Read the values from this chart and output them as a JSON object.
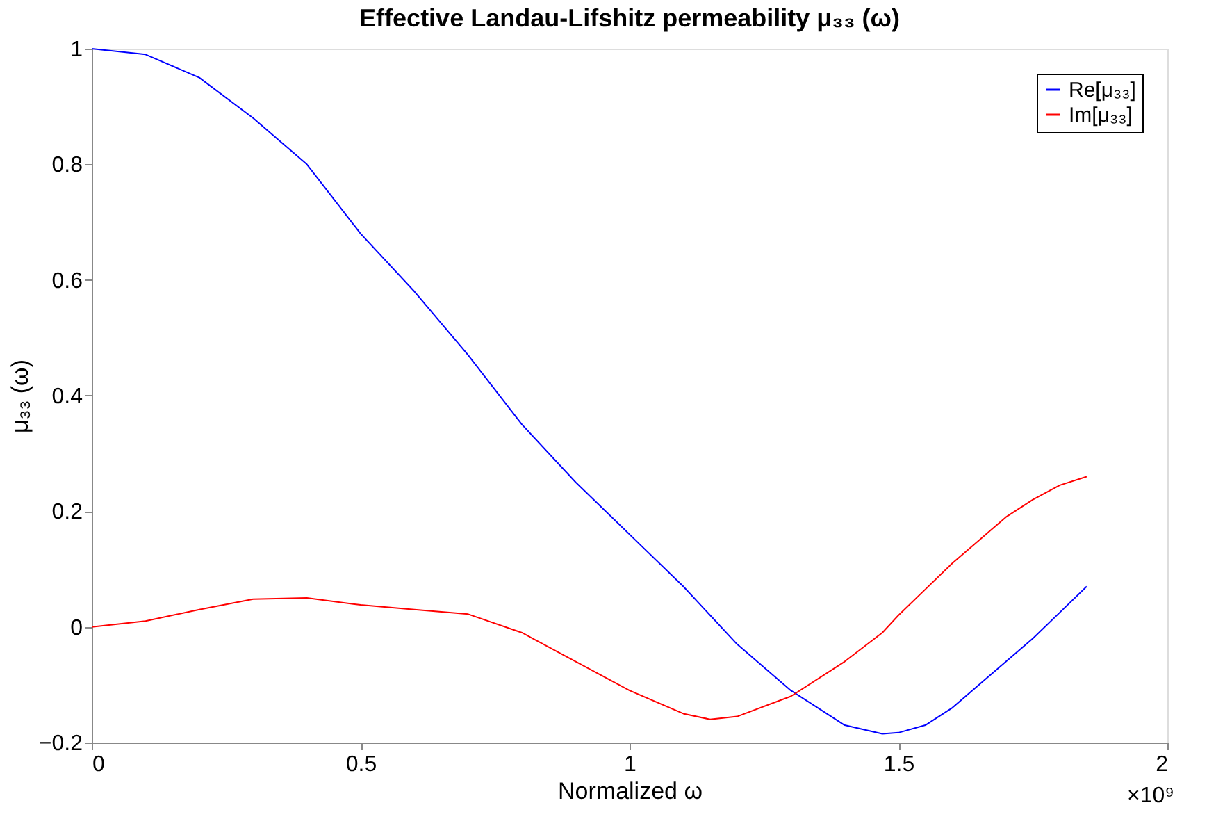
{
  "chart_data": {
    "type": "line",
    "title": "Effective Landau-Lifshitz permeability μ₃₃ (ω)",
    "xlabel": "Normalized ω",
    "ylabel": "μ₃₃ (ω)",
    "x": [
      0,
      0.1,
      0.2,
      0.3,
      0.4,
      0.5,
      0.6,
      0.7,
      0.8,
      0.9,
      1.0,
      1.1,
      1.15,
      1.2,
      1.3,
      1.4,
      1.47,
      1.5,
      1.55,
      1.6,
      1.65,
      1.7,
      1.75,
      1.8,
      1.85
    ],
    "series": [
      {
        "name": "Re[μ₃₃]",
        "color": "#0000ff",
        "values": [
          1.0,
          0.99,
          0.95,
          0.88,
          0.8,
          0.68,
          0.58,
          0.47,
          0.35,
          0.25,
          0.16,
          0.07,
          0.02,
          -0.03,
          -0.11,
          -0.17,
          -0.185,
          -0.183,
          -0.17,
          -0.14,
          -0.1,
          -0.06,
          -0.02,
          0.025,
          0.07
        ]
      },
      {
        "name": "Im[μ₃₃]",
        "color": "#ff0000",
        "values": [
          0.0,
          0.01,
          0.03,
          0.048,
          0.05,
          0.038,
          0.03,
          0.022,
          -0.01,
          -0.06,
          -0.11,
          -0.15,
          -0.16,
          -0.155,
          -0.12,
          -0.06,
          -0.01,
          0.02,
          0.065,
          0.11,
          0.15,
          0.19,
          0.22,
          0.245,
          0.26
        ]
      }
    ],
    "xlim": [
      0,
      2
    ],
    "xticks": [
      0,
      0.5,
      1,
      1.5,
      2
    ],
    "ylim": [
      -0.2,
      1
    ],
    "yticks": [
      -0.2,
      0,
      0.2,
      0.4,
      0.6,
      0.8,
      1
    ],
    "annotations": [
      "×10⁹"
    ],
    "grid": false,
    "legend": "top right",
    "line_style": "solid",
    "marker": "none"
  }
}
